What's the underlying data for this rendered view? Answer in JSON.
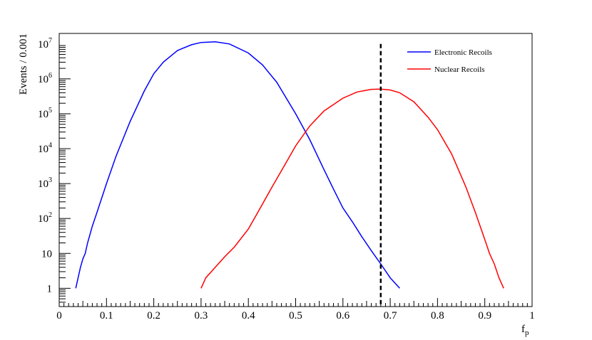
{
  "chart_data": {
    "type": "line",
    "xlabel_main": "f",
    "xlabel_sub": "p",
    "ylabel": "Events / 0.001",
    "xlim": [
      0,
      1
    ],
    "ylim": [
      0.3,
      20000000
    ],
    "yscale": "log",
    "x_ticks": [
      {
        "v": 0,
        "label": "0"
      },
      {
        "v": 0.1,
        "label": "0.1"
      },
      {
        "v": 0.2,
        "label": "0.2"
      },
      {
        "v": 0.3,
        "label": "0.3"
      },
      {
        "v": 0.4,
        "label": "0.4"
      },
      {
        "v": 0.5,
        "label": "0.5"
      },
      {
        "v": 0.6,
        "label": "0.6"
      },
      {
        "v": 0.7,
        "label": "0.7"
      },
      {
        "v": 0.8,
        "label": "0.8"
      },
      {
        "v": 0.9,
        "label": "0.9"
      },
      {
        "v": 1,
        "label": "1"
      }
    ],
    "y_ticks": [
      {
        "v": 1,
        "base": "1",
        "exp": ""
      },
      {
        "v": 10,
        "base": "10",
        "exp": ""
      },
      {
        "v": 100,
        "base": "10",
        "exp": "2"
      },
      {
        "v": 1000,
        "base": "10",
        "exp": "3"
      },
      {
        "v": 10000,
        "base": "10",
        "exp": "4"
      },
      {
        "v": 100000,
        "base": "10",
        "exp": "5"
      },
      {
        "v": 1000000,
        "base": "10",
        "exp": "6"
      },
      {
        "v": 10000000,
        "base": "10",
        "exp": "7"
      }
    ],
    "cut_line_x": 0.68,
    "legend_position": "top-right",
    "series": [
      {
        "name": "Electronic Recoils",
        "color": "#0000ff",
        "x": [
          0.035,
          0.04,
          0.045,
          0.05,
          0.055,
          0.06,
          0.07,
          0.08,
          0.1,
          0.12,
          0.15,
          0.18,
          0.2,
          0.22,
          0.25,
          0.28,
          0.3,
          0.33,
          0.36,
          0.4,
          0.43,
          0.46,
          0.5,
          0.53,
          0.56,
          0.58,
          0.6,
          0.62,
          0.64,
          0.66,
          0.68,
          0.7,
          0.72
        ],
        "y": [
          1,
          2,
          4,
          7,
          10,
          20,
          60,
          150,
          1000,
          6000,
          60000,
          450000,
          1400000,
          3000000,
          6500000,
          9500000,
          11000000,
          11500000,
          10000000,
          5500000,
          2500000,
          800000,
          100000,
          18000,
          2500,
          700,
          200,
          80,
          30,
          12,
          5,
          2,
          1
        ]
      },
      {
        "name": "Nuclear Recoils",
        "color": "#ff0000",
        "x": [
          0.3,
          0.31,
          0.33,
          0.35,
          0.37,
          0.4,
          0.42,
          0.45,
          0.48,
          0.5,
          0.53,
          0.56,
          0.6,
          0.63,
          0.66,
          0.68,
          0.7,
          0.72,
          0.75,
          0.78,
          0.8,
          0.83,
          0.86,
          0.88,
          0.9,
          0.91,
          0.92,
          0.93,
          0.94
        ],
        "y": [
          1,
          2,
          4,
          8,
          15,
          50,
          150,
          800,
          4000,
          12000,
          45000,
          120000,
          280000,
          420000,
          500000,
          510000,
          480000,
          400000,
          220000,
          80000,
          35000,
          7000,
          800,
          150,
          25,
          10,
          5,
          2,
          1
        ]
      }
    ]
  }
}
